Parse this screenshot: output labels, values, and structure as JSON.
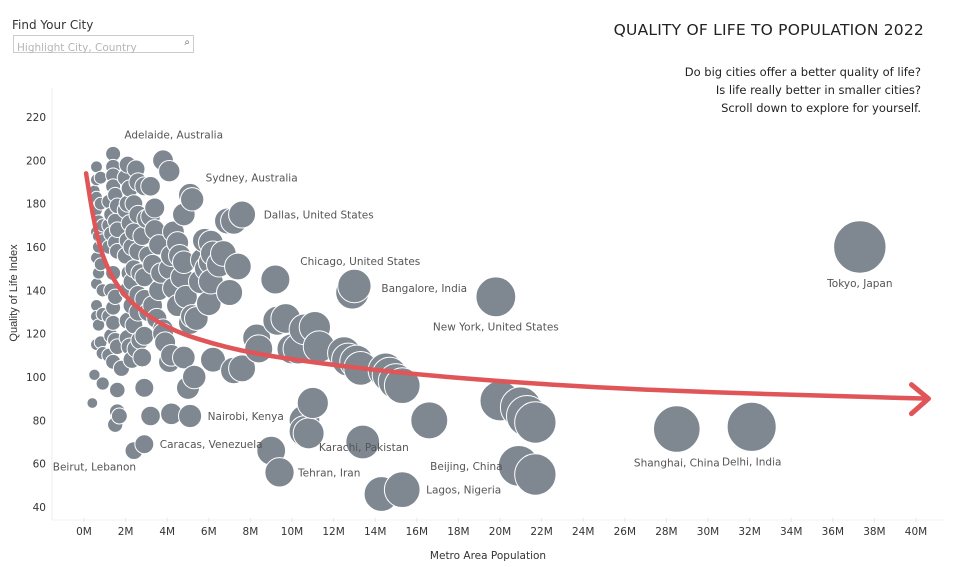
{
  "search": {
    "label": "Find Your City",
    "placeholder": "Highlight City, Country",
    "value": "",
    "icon": "search-icon"
  },
  "header": {
    "title": "QUALITY OF LIFE TO POPULATION 2022",
    "subtitle_lines": [
      "Do big cities offer a better quality of life?",
      "Is life really better in smaller cities?",
      "Scroll down to explore for yourself."
    ]
  },
  "colors": {
    "bubble": "#7f8891",
    "bubble_stroke": "#ffffff",
    "trend": "#e05558",
    "label_text": "#555555",
    "axis_text": "#333333",
    "grid": "#eeeeee"
  },
  "chart_data": {
    "type": "scatter",
    "title": "QUALITY OF LIFE TO POPULATION 2022",
    "xlabel": "Metro Area Population",
    "ylabel": "Quality of Life Index",
    "xlim": [
      -1.5,
      40.5
    ],
    "ylim": [
      36,
      226
    ],
    "x_ticks": [
      "0M",
      "2M",
      "4M",
      "6M",
      "8M",
      "10M",
      "12M",
      "14M",
      "16M",
      "18M",
      "20M",
      "22M",
      "24M",
      "26M",
      "28M",
      "30M",
      "32M",
      "34M",
      "36M",
      "38M",
      "40M"
    ],
    "x_tick_values": [
      0,
      2,
      4,
      6,
      8,
      10,
      12,
      14,
      16,
      18,
      20,
      22,
      24,
      26,
      28,
      30,
      32,
      34,
      36,
      38,
      40
    ],
    "y_ticks": [
      40,
      60,
      80,
      100,
      120,
      140,
      160,
      180,
      200,
      220
    ],
    "grid": false,
    "size_encoding": "population",
    "labeled_points": [
      {
        "label": "Adelaide, Australia",
        "x": 1.3,
        "y": 212,
        "label_pos": "right"
      },
      {
        "label": "Sydney, Australia",
        "x": 5.1,
        "y": 184,
        "label_pos": "upper-right"
      },
      {
        "label": "Dallas, United States",
        "x": 7.7,
        "y": 175,
        "label_pos": "right"
      },
      {
        "label": "Chicago, United States",
        "x": 9.5,
        "y": 144,
        "label_pos": "upper-right"
      },
      {
        "label": "Bangalore, India",
        "x": 13.2,
        "y": 141,
        "label_pos": "right"
      },
      {
        "label": "New York, United States",
        "x": 19.8,
        "y": 137,
        "label_pos": "below"
      },
      {
        "label": "Tokyo, Japan",
        "x": 37.3,
        "y": 160,
        "label_pos": "below"
      },
      {
        "label": "Nairobi, Kenya",
        "x": 5.1,
        "y": 82,
        "label_pos": "right"
      },
      {
        "label": "Caracas, Venezuela",
        "x": 2.9,
        "y": 69,
        "label_pos": "right"
      },
      {
        "label": "Beirut, Lebanon",
        "x": 0.5,
        "y": 66,
        "label_pos": "below"
      },
      {
        "label": "Tehran, Iran",
        "x": 9.3,
        "y": 56,
        "label_pos": "right"
      },
      {
        "label": "Karachi, Pakistan",
        "x": 16.6,
        "y": 80,
        "label_pos": "below-left"
      },
      {
        "label": "Beijing, China",
        "x": 21.5,
        "y": 59,
        "label_pos": "left"
      },
      {
        "label": "Lagos, Nigeria",
        "x": 15.3,
        "y": 48,
        "label_pos": "right"
      },
      {
        "label": "Shanghai, China",
        "x": 28.5,
        "y": 76,
        "label_pos": "below"
      },
      {
        "label": "Delhi, India",
        "x": 32.1,
        "y": 77,
        "label_pos": "below"
      }
    ],
    "points": [
      [
        0.6,
        197
      ],
      [
        0.6,
        191
      ],
      [
        0.8,
        192
      ],
      [
        0.5,
        186
      ],
      [
        0.6,
        183
      ],
      [
        0.8,
        180
      ],
      [
        0.6,
        177
      ],
      [
        0.7,
        172
      ],
      [
        0.9,
        170
      ],
      [
        0.6,
        167
      ],
      [
        0.7,
        165
      ],
      [
        0.9,
        163
      ],
      [
        0.7,
        160
      ],
      [
        0.6,
        155
      ],
      [
        0.8,
        152
      ],
      [
        0.7,
        148
      ],
      [
        0.6,
        143
      ],
      [
        0.9,
        140
      ],
      [
        0.6,
        133
      ],
      [
        0.9,
        129
      ],
      [
        0.6,
        128
      ],
      [
        0.7,
        124
      ],
      [
        0.8,
        116
      ],
      [
        0.6,
        115
      ],
      [
        0.9,
        111
      ],
      [
        0.5,
        101
      ],
      [
        0.9,
        97
      ],
      [
        0.4,
        88
      ],
      [
        1.4,
        203
      ],
      [
        1.4,
        197
      ],
      [
        1.4,
        193
      ],
      [
        1.4,
        188
      ],
      [
        1.5,
        184
      ],
      [
        1.2,
        181
      ],
      [
        1.6,
        179
      ],
      [
        1.3,
        175
      ],
      [
        1.5,
        172
      ],
      [
        1.2,
        170
      ],
      [
        1.6,
        168
      ],
      [
        1.3,
        166
      ],
      [
        1.5,
        162
      ],
      [
        1.2,
        160
      ],
      [
        1.6,
        158
      ],
      [
        1.4,
        148
      ],
      [
        1.3,
        140
      ],
      [
        1.5,
        137
      ],
      [
        1.4,
        132
      ],
      [
        1.2,
        128
      ],
      [
        1.4,
        125
      ],
      [
        1.3,
        119
      ],
      [
        1.5,
        117
      ],
      [
        1.6,
        114
      ],
      [
        1.2,
        110
      ],
      [
        1.4,
        107
      ],
      [
        1.8,
        104
      ],
      [
        1.6,
        94
      ],
      [
        1.6,
        84
      ],
      [
        1.7,
        82
      ],
      [
        1.5,
        78
      ],
      [
        2.1,
        198
      ],
      [
        2.5,
        196
      ],
      [
        2.0,
        192
      ],
      [
        2.6,
        190
      ],
      [
        2.2,
        187
      ],
      [
        2.9,
        188
      ],
      [
        2.1,
        180
      ],
      [
        2.4,
        180
      ],
      [
        2.0,
        177
      ],
      [
        2.6,
        175
      ],
      [
        2.2,
        171
      ],
      [
        3.0,
        173
      ],
      [
        2.4,
        167
      ],
      [
        2.1,
        163
      ],
      [
        2.8,
        165
      ],
      [
        2.3,
        160
      ],
      [
        2.6,
        158
      ],
      [
        2.0,
        156
      ],
      [
        2.4,
        150
      ],
      [
        2.2,
        148
      ],
      [
        2.7,
        148
      ],
      [
        2.9,
        146
      ],
      [
        2.3,
        144
      ],
      [
        2.1,
        140
      ],
      [
        2.6,
        138
      ],
      [
        2.9,
        136
      ],
      [
        2.3,
        133
      ],
      [
        2.6,
        130
      ],
      [
        2.1,
        126
      ],
      [
        2.4,
        124
      ],
      [
        2.9,
        119
      ],
      [
        2.7,
        117
      ],
      [
        2.1,
        118
      ],
      [
        2.2,
        114
      ],
      [
        2.5,
        113
      ],
      [
        2.3,
        108
      ],
      [
        2.8,
        109
      ],
      [
        2.9,
        95
      ],
      [
        2.9,
        69
      ],
      [
        2.4,
        66
      ],
      [
        3.2,
        188
      ],
      [
        3.4,
        178
      ],
      [
        3.2,
        174
      ],
      [
        3.4,
        168
      ],
      [
        3.6,
        161
      ],
      [
        3.1,
        156
      ],
      [
        3.3,
        152
      ],
      [
        3.7,
        148
      ],
      [
        3.6,
        140
      ],
      [
        3.3,
        133
      ],
      [
        3.1,
        130
      ],
      [
        3.5,
        127
      ],
      [
        3.8,
        122
      ],
      [
        3.8,
        120
      ],
      [
        3.9,
        116
      ],
      [
        4.2,
        110
      ],
      [
        4.1,
        107
      ],
      [
        4.2,
        83
      ],
      [
        3.2,
        82
      ],
      [
        4.1,
        195
      ],
      [
        3.8,
        200
      ],
      [
        4.3,
        167
      ],
      [
        4.5,
        162
      ],
      [
        4.2,
        156
      ],
      [
        4.6,
        156
      ],
      [
        4.8,
        153
      ],
      [
        4.1,
        150
      ],
      [
        4.7,
        146
      ],
      [
        4.3,
        141
      ],
      [
        4.9,
        137
      ],
      [
        4.5,
        133
      ],
      [
        5.2,
        128
      ],
      [
        5.1,
        125
      ],
      [
        5.4,
        127
      ],
      [
        4.8,
        109
      ],
      [
        5.0,
        95
      ],
      [
        5.3,
        100
      ],
      [
        5.1,
        82
      ],
      [
        5.1,
        184
      ],
      [
        4.8,
        175
      ],
      [
        5.2,
        182
      ],
      [
        5.8,
        163
      ],
      [
        6.1,
        162
      ],
      [
        6.2,
        157
      ],
      [
        5.7,
        154
      ],
      [
        6.1,
        153
      ],
      [
        5.9,
        150
      ],
      [
        6.5,
        152
      ],
      [
        5.6,
        144
      ],
      [
        6.1,
        144
      ],
      [
        6.0,
        134
      ],
      [
        6.2,
        108
      ],
      [
        6.7,
        157
      ],
      [
        6.9,
        172
      ],
      [
        7.0,
        139
      ],
      [
        7.2,
        103
      ],
      [
        7.4,
        151
      ],
      [
        7.6,
        104
      ],
      [
        7.6,
        175
      ],
      [
        7.2,
        172
      ],
      [
        8.3,
        118
      ],
      [
        8.4,
        113
      ],
      [
        9.2,
        145
      ],
      [
        9.3,
        126
      ],
      [
        9.7,
        127
      ],
      [
        9.4,
        56
      ],
      [
        9.0,
        66
      ],
      [
        10.0,
        113
      ],
      [
        10.3,
        113
      ],
      [
        10.6,
        122
      ],
      [
        10.6,
        80
      ],
      [
        10.8,
        74
      ],
      [
        10.6,
        75
      ],
      [
        11.0,
        88
      ],
      [
        11.3,
        114
      ],
      [
        11.1,
        123
      ],
      [
        12.5,
        111
      ],
      [
        12.7,
        108
      ],
      [
        13.1,
        107
      ],
      [
        13.3,
        104
      ],
      [
        12.9,
        139
      ],
      [
        13.0,
        142
      ],
      [
        13.4,
        70
      ],
      [
        14.5,
        103
      ],
      [
        14.7,
        101
      ],
      [
        15.0,
        98
      ],
      [
        15.3,
        96
      ],
      [
        14.3,
        46
      ],
      [
        15.3,
        48
      ],
      [
        16.6,
        80
      ],
      [
        20.0,
        89
      ],
      [
        21.0,
        86
      ],
      [
        21.3,
        82
      ],
      [
        21.7,
        79
      ],
      [
        20.9,
        59
      ],
      [
        21.7,
        55
      ],
      [
        19.8,
        137
      ],
      [
        28.5,
        76
      ],
      [
        32.1,
        77
      ],
      [
        37.3,
        160
      ]
    ],
    "trend_line": {
      "description": "decreasing power-law trend with arrowhead",
      "points": [
        [
          0.1,
          194
        ],
        [
          0.5,
          170
        ],
        [
          1.0,
          152
        ],
        [
          2.0,
          136
        ],
        [
          4.0,
          122
        ],
        [
          7.0,
          113
        ],
        [
          10.0,
          108
        ],
        [
          15.0,
          102
        ],
        [
          20.0,
          98
        ],
        [
          25.0,
          95
        ],
        [
          30.0,
          93
        ],
        [
          35.0,
          91.5
        ],
        [
          40.6,
          90
        ]
      ]
    }
  }
}
